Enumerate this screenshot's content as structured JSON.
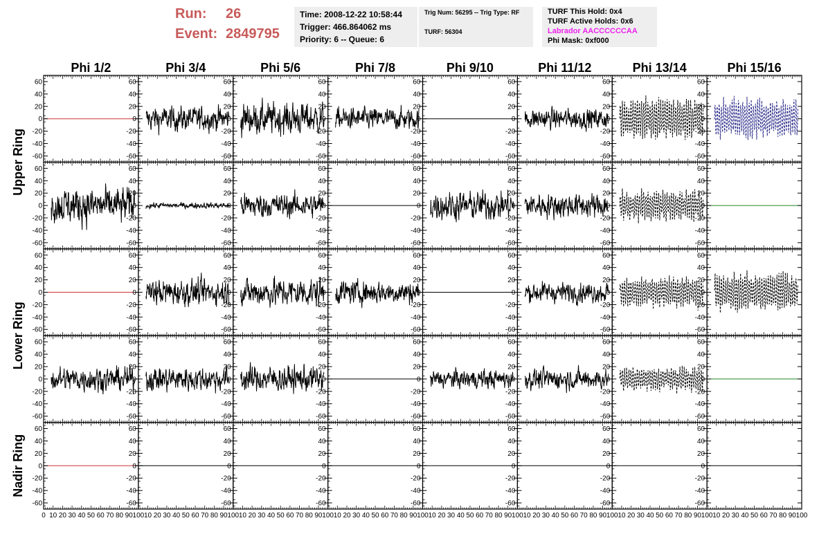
{
  "header": {
    "run_label": "Run:",
    "run_value": "26",
    "event_label": "Event:",
    "event_value": "2849795",
    "box1": [
      "Time: 2008-12-22 10:58:44",
      "Trigger: 466.864062 ms",
      "Priority: 6 -- Queue: 6"
    ],
    "box2": [
      "Trig Num: 56295 -- Trig Type: RF",
      "TURF: 56304"
    ],
    "box3": [
      "TURF This Hold: 0x4",
      "TURF Active Holds: 0x6",
      "Labrador AACCCCCCAA",
      "Phi Mask: 0xf000"
    ],
    "labrador_color": "#ee22ee"
  },
  "chart_data": {
    "type": "line",
    "columns": [
      "Phi 1/2",
      "Phi 3/4",
      "Phi 5/6",
      "Phi 7/8",
      "Phi 9/10",
      "Phi 11/12",
      "Phi 13/14",
      "Phi 15/16"
    ],
    "rows": [
      "Upper Ring",
      "Lower Ring",
      "Nadir Ring"
    ],
    "ylim": [
      -70,
      70
    ],
    "yticks": [
      -60,
      -40,
      -20,
      0,
      20,
      40,
      60
    ],
    "xlim": [
      0,
      100
    ],
    "xtick_labels": [
      "0",
      "10",
      "20",
      "30",
      "40",
      "50",
      "60",
      "70",
      "80",
      "90",
      "100"
    ],
    "style_colors": {
      "flat_red": "#cc3333",
      "flat_green": "#228822",
      "noise": "#000000",
      "dashed_black": "#000000",
      "dashed_blue": "#2a2a8a"
    },
    "panels": [
      [
        {
          "kind": "flat",
          "color": "flat_red"
        },
        {
          "kind": "noise",
          "amp": 17
        },
        {
          "kind": "noise",
          "amp": 22
        },
        {
          "kind": "noise",
          "amp": 15
        },
        {
          "kind": "flat",
          "color": "noise"
        },
        {
          "kind": "noise",
          "amp": 14
        },
        {
          "kind": "dashed",
          "amp": 30,
          "color": "dashed_black"
        },
        {
          "kind": "dashed",
          "amp": 30,
          "color": "dashed_blue"
        }
      ],
      [
        {
          "kind": "noise",
          "amp": 25
        },
        {
          "kind": "noise",
          "amp": 4
        },
        {
          "kind": "noise",
          "amp": 17
        },
        {
          "kind": "flat",
          "color": "noise"
        },
        {
          "kind": "noise",
          "amp": 20
        },
        {
          "kind": "noise",
          "amp": 17
        },
        {
          "kind": "dashed",
          "amp": 22,
          "color": "dashed_black"
        },
        {
          "kind": "flat",
          "color": "flat_green"
        }
      ],
      [
        {
          "kind": "flat",
          "color": "flat_red"
        },
        {
          "kind": "noise",
          "amp": 18
        },
        {
          "kind": "noise",
          "amp": 20
        },
        {
          "kind": "noise",
          "amp": 16
        },
        {
          "kind": "flat",
          "color": "noise"
        },
        {
          "kind": "noise",
          "amp": 14
        },
        {
          "kind": "dashed",
          "amp": 22,
          "color": "dashed_black"
        },
        {
          "kind": "dashed",
          "amp": 28,
          "color": "dashed_black"
        }
      ],
      [
        {
          "kind": "noise",
          "amp": 17
        },
        {
          "kind": "noise",
          "amp": 17
        },
        {
          "kind": "noise",
          "amp": 18
        },
        {
          "kind": "flat",
          "color": "noise"
        },
        {
          "kind": "noise",
          "amp": 13
        },
        {
          "kind": "noise",
          "amp": 14
        },
        {
          "kind": "dashed",
          "amp": 18,
          "color": "dashed_black"
        },
        {
          "kind": "flat",
          "color": "flat_green"
        }
      ],
      [
        {
          "kind": "flat",
          "color": "flat_red"
        },
        {
          "kind": "flat",
          "color": "noise"
        },
        {
          "kind": "flat",
          "color": "noise"
        },
        {
          "kind": "flat",
          "color": "noise"
        },
        {
          "kind": "flat",
          "color": "noise"
        },
        {
          "kind": "flat",
          "color": "noise"
        },
        {
          "kind": "flat",
          "color": "noise"
        },
        {
          "kind": "flat",
          "color": "noise"
        }
      ]
    ]
  }
}
